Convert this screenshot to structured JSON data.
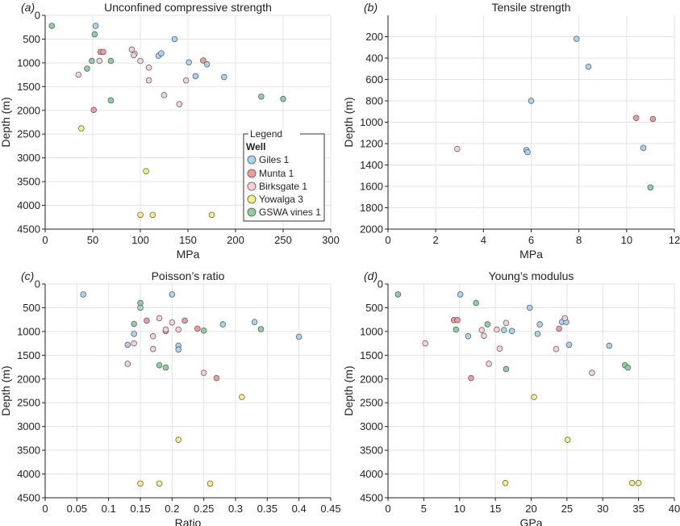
{
  "colors": {
    "Giles 1": "#a9d3ee",
    "Munta 1": "#ee9d9d",
    "Birksgate 1": "#f6d2d8",
    "Yowalga 3": "#f4f083",
    "GSWA vines 1": "#8fcf9f",
    "grid": "#e3e3e3",
    "axis": "#222222",
    "marker_edge": "#555555"
  },
  "legend": {
    "title": "Legend",
    "subtitle": "Well",
    "entries": [
      "Giles 1",
      "Munta 1",
      "Birksgate 1",
      "Yowalga 3",
      "GSWA vines 1"
    ]
  },
  "chart_data": [
    {
      "type": "scatter",
      "letter": "(a)",
      "title": "Unconfined compressive strength",
      "xlabel": "MPa",
      "ylabel": "Depth (m)",
      "xlim": [
        0,
        300
      ],
      "ylim": [
        0,
        4500
      ],
      "y_inverted": true,
      "xticks": [
        0,
        50,
        100,
        150,
        200,
        250,
        300
      ],
      "yticks": [
        0,
        500,
        1000,
        1500,
        2000,
        2500,
        3000,
        3500,
        4000,
        4500
      ],
      "grid": true,
      "legend_placement": "right",
      "series": [
        {
          "name": "Giles 1",
          "points": [
            [
              53,
              220
            ],
            [
              136,
              500
            ],
            [
              119,
              850
            ],
            [
              122,
              800
            ],
            [
              151,
              990
            ],
            [
              170,
              1030
            ],
            [
              158,
              1280
            ],
            [
              188,
              1300
            ]
          ]
        },
        {
          "name": "Munta 1",
          "points": [
            [
              58,
              770
            ],
            [
              61,
              770
            ],
            [
              166,
              950
            ],
            [
              51,
              1990
            ]
          ]
        },
        {
          "name": "Birksgate 1",
          "points": [
            [
              91,
              720
            ],
            [
              94,
              810
            ],
            [
              93,
              840
            ],
            [
              57,
              960
            ],
            [
              100,
              960
            ],
            [
              109,
              1100
            ],
            [
              35,
              1250
            ],
            [
              109,
              1370
            ],
            [
              148,
              1370
            ],
            [
              125,
              1680
            ],
            [
              141,
              1870
            ]
          ]
        },
        {
          "name": "Yowalga 3",
          "points": [
            [
              38,
              2380
            ],
            [
              106,
              3280
            ],
            [
              100,
              4200
            ],
            [
              113,
              4200
            ],
            [
              175,
              4200
            ]
          ]
        },
        {
          "name": "GSWA vines 1",
          "points": [
            [
              7,
              220
            ],
            [
              52,
              400
            ],
            [
              49,
              960
            ],
            [
              69,
              960
            ],
            [
              44,
              1120
            ],
            [
              69,
              1790
            ],
            [
              227,
              1710
            ],
            [
              250,
              1760
            ]
          ]
        }
      ]
    },
    {
      "type": "scatter",
      "letter": "(b)",
      "title": "Tensile strength",
      "xlabel": "MPa",
      "ylabel": "Depth (m)",
      "xlim": [
        0,
        12
      ],
      "ylim": [
        0,
        2000
      ],
      "y_inverted": true,
      "xticks": [
        0,
        2,
        4,
        6,
        8,
        10,
        12
      ],
      "yticks": [
        200,
        400,
        600,
        800,
        1000,
        1200,
        1400,
        1600,
        1800,
        2000
      ],
      "grid": true,
      "series": [
        {
          "name": "Giles 1",
          "points": [
            [
              7.9,
              220
            ],
            [
              8.4,
              480
            ],
            [
              6.0,
              800
            ],
            [
              5.8,
              1260
            ],
            [
              5.85,
              1280
            ],
            [
              10.7,
              1240
            ]
          ]
        },
        {
          "name": "Munta 1",
          "points": [
            [
              10.4,
              960
            ],
            [
              11.1,
              970
            ]
          ]
        },
        {
          "name": "Birksgate 1",
          "points": [
            [
              2.9,
              1250
            ]
          ]
        },
        {
          "name": "GSWA vines 1",
          "points": [
            [
              11.0,
              1610
            ]
          ]
        }
      ]
    },
    {
      "type": "scatter",
      "letter": "(c)",
      "title": "Poisson’s ratio",
      "xlabel": "Ratio",
      "ylabel": "Depth (m)",
      "xlim": [
        0,
        0.45
      ],
      "ylim": [
        0,
        4500
      ],
      "y_inverted": true,
      "xticks": [
        0,
        0.05,
        0.1,
        0.15,
        0.2,
        0.25,
        0.3,
        0.35,
        0.4,
        0.45
      ],
      "yticks": [
        0,
        500,
        1000,
        1500,
        2000,
        2500,
        3000,
        3500,
        4000,
        4500
      ],
      "grid": true,
      "series": [
        {
          "name": "Giles 1",
          "points": [
            [
              0.06,
              220
            ],
            [
              0.2,
              220
            ],
            [
              0.15,
              500
            ],
            [
              0.33,
              800
            ],
            [
              0.28,
              850
            ],
            [
              0.14,
              1050
            ],
            [
              0.4,
              1110
            ],
            [
              0.13,
              1280
            ],
            [
              0.21,
              1300
            ],
            [
              0.21,
              1380
            ]
          ]
        },
        {
          "name": "Munta 1",
          "points": [
            [
              0.16,
              770
            ],
            [
              0.22,
              770
            ],
            [
              0.24,
              940
            ],
            [
              0.19,
              990
            ],
            [
              0.27,
              1980
            ]
          ]
        },
        {
          "name": "Birksgate 1",
          "points": [
            [
              0.18,
              720
            ],
            [
              0.2,
              810
            ],
            [
              0.19,
              960
            ],
            [
              0.21,
              960
            ],
            [
              0.17,
              1100
            ],
            [
              0.14,
              1250
            ],
            [
              0.17,
              1370
            ],
            [
              0.13,
              1680
            ],
            [
              0.25,
              1870
            ]
          ]
        },
        {
          "name": "Yowalga 3",
          "points": [
            [
              0.31,
              2380
            ],
            [
              0.21,
              3280
            ],
            [
              0.15,
              4200
            ],
            [
              0.18,
              4200
            ],
            [
              0.26,
              4200
            ]
          ]
        },
        {
          "name": "GSWA vines 1",
          "points": [
            [
              0.15,
              400
            ],
            [
              0.14,
              840
            ],
            [
              0.34,
              950
            ],
            [
              0.25,
              980
            ],
            [
              0.18,
              1710
            ],
            [
              0.19,
              1760
            ]
          ]
        }
      ]
    },
    {
      "type": "scatter",
      "letter": "(d)",
      "title": "Young’s modulus",
      "xlabel": "GPa",
      "ylabel": "Depth (m)",
      "xlim": [
        0,
        40
      ],
      "ylim": [
        0,
        4500
      ],
      "y_inverted": true,
      "xticks": [
        0,
        5,
        10,
        15,
        20,
        25,
        30,
        35,
        40
      ],
      "yticks": [
        0,
        500,
        1000,
        1500,
        2000,
        2500,
        3000,
        3500,
        4000,
        4500
      ],
      "grid": true,
      "series": [
        {
          "name": "Giles 1",
          "points": [
            [
              10.1,
              220
            ],
            [
              19.8,
              500
            ],
            [
              24.3,
              800
            ],
            [
              24.9,
              800
            ],
            [
              21.2,
              850
            ],
            [
              16.2,
              970
            ],
            [
              17.3,
              990
            ],
            [
              20.9,
              1050
            ],
            [
              11.2,
              1100
            ],
            [
              25.3,
              1280
            ],
            [
              30.9,
              1300
            ]
          ]
        },
        {
          "name": "Munta 1",
          "points": [
            [
              9.2,
              760
            ],
            [
              9.7,
              760
            ],
            [
              23.9,
              940
            ],
            [
              11.6,
              1980
            ]
          ]
        },
        {
          "name": "Birksgate 1",
          "points": [
            [
              16.5,
              820
            ],
            [
              24.7,
              720
            ],
            [
              13.1,
              970
            ],
            [
              15.2,
              960
            ],
            [
              13.4,
              1090
            ],
            [
              5.2,
              1250
            ],
            [
              15.6,
              1360
            ],
            [
              23.5,
              1370
            ],
            [
              14.1,
              1680
            ],
            [
              28.5,
              1870
            ]
          ]
        },
        {
          "name": "Yowalga 3",
          "points": [
            [
              20.4,
              2380
            ],
            [
              25.1,
              3280
            ],
            [
              16.4,
              4190
            ],
            [
              34.1,
              4190
            ],
            [
              35.0,
              4190
            ]
          ]
        },
        {
          "name": "GSWA vines 1",
          "points": [
            [
              1.4,
              220
            ],
            [
              12.3,
              400
            ],
            [
              13.9,
              850
            ],
            [
              9.5,
              960
            ],
            [
              16.5,
              1790
            ],
            [
              33.1,
              1710
            ],
            [
              33.5,
              1760
            ]
          ]
        }
      ]
    }
  ]
}
